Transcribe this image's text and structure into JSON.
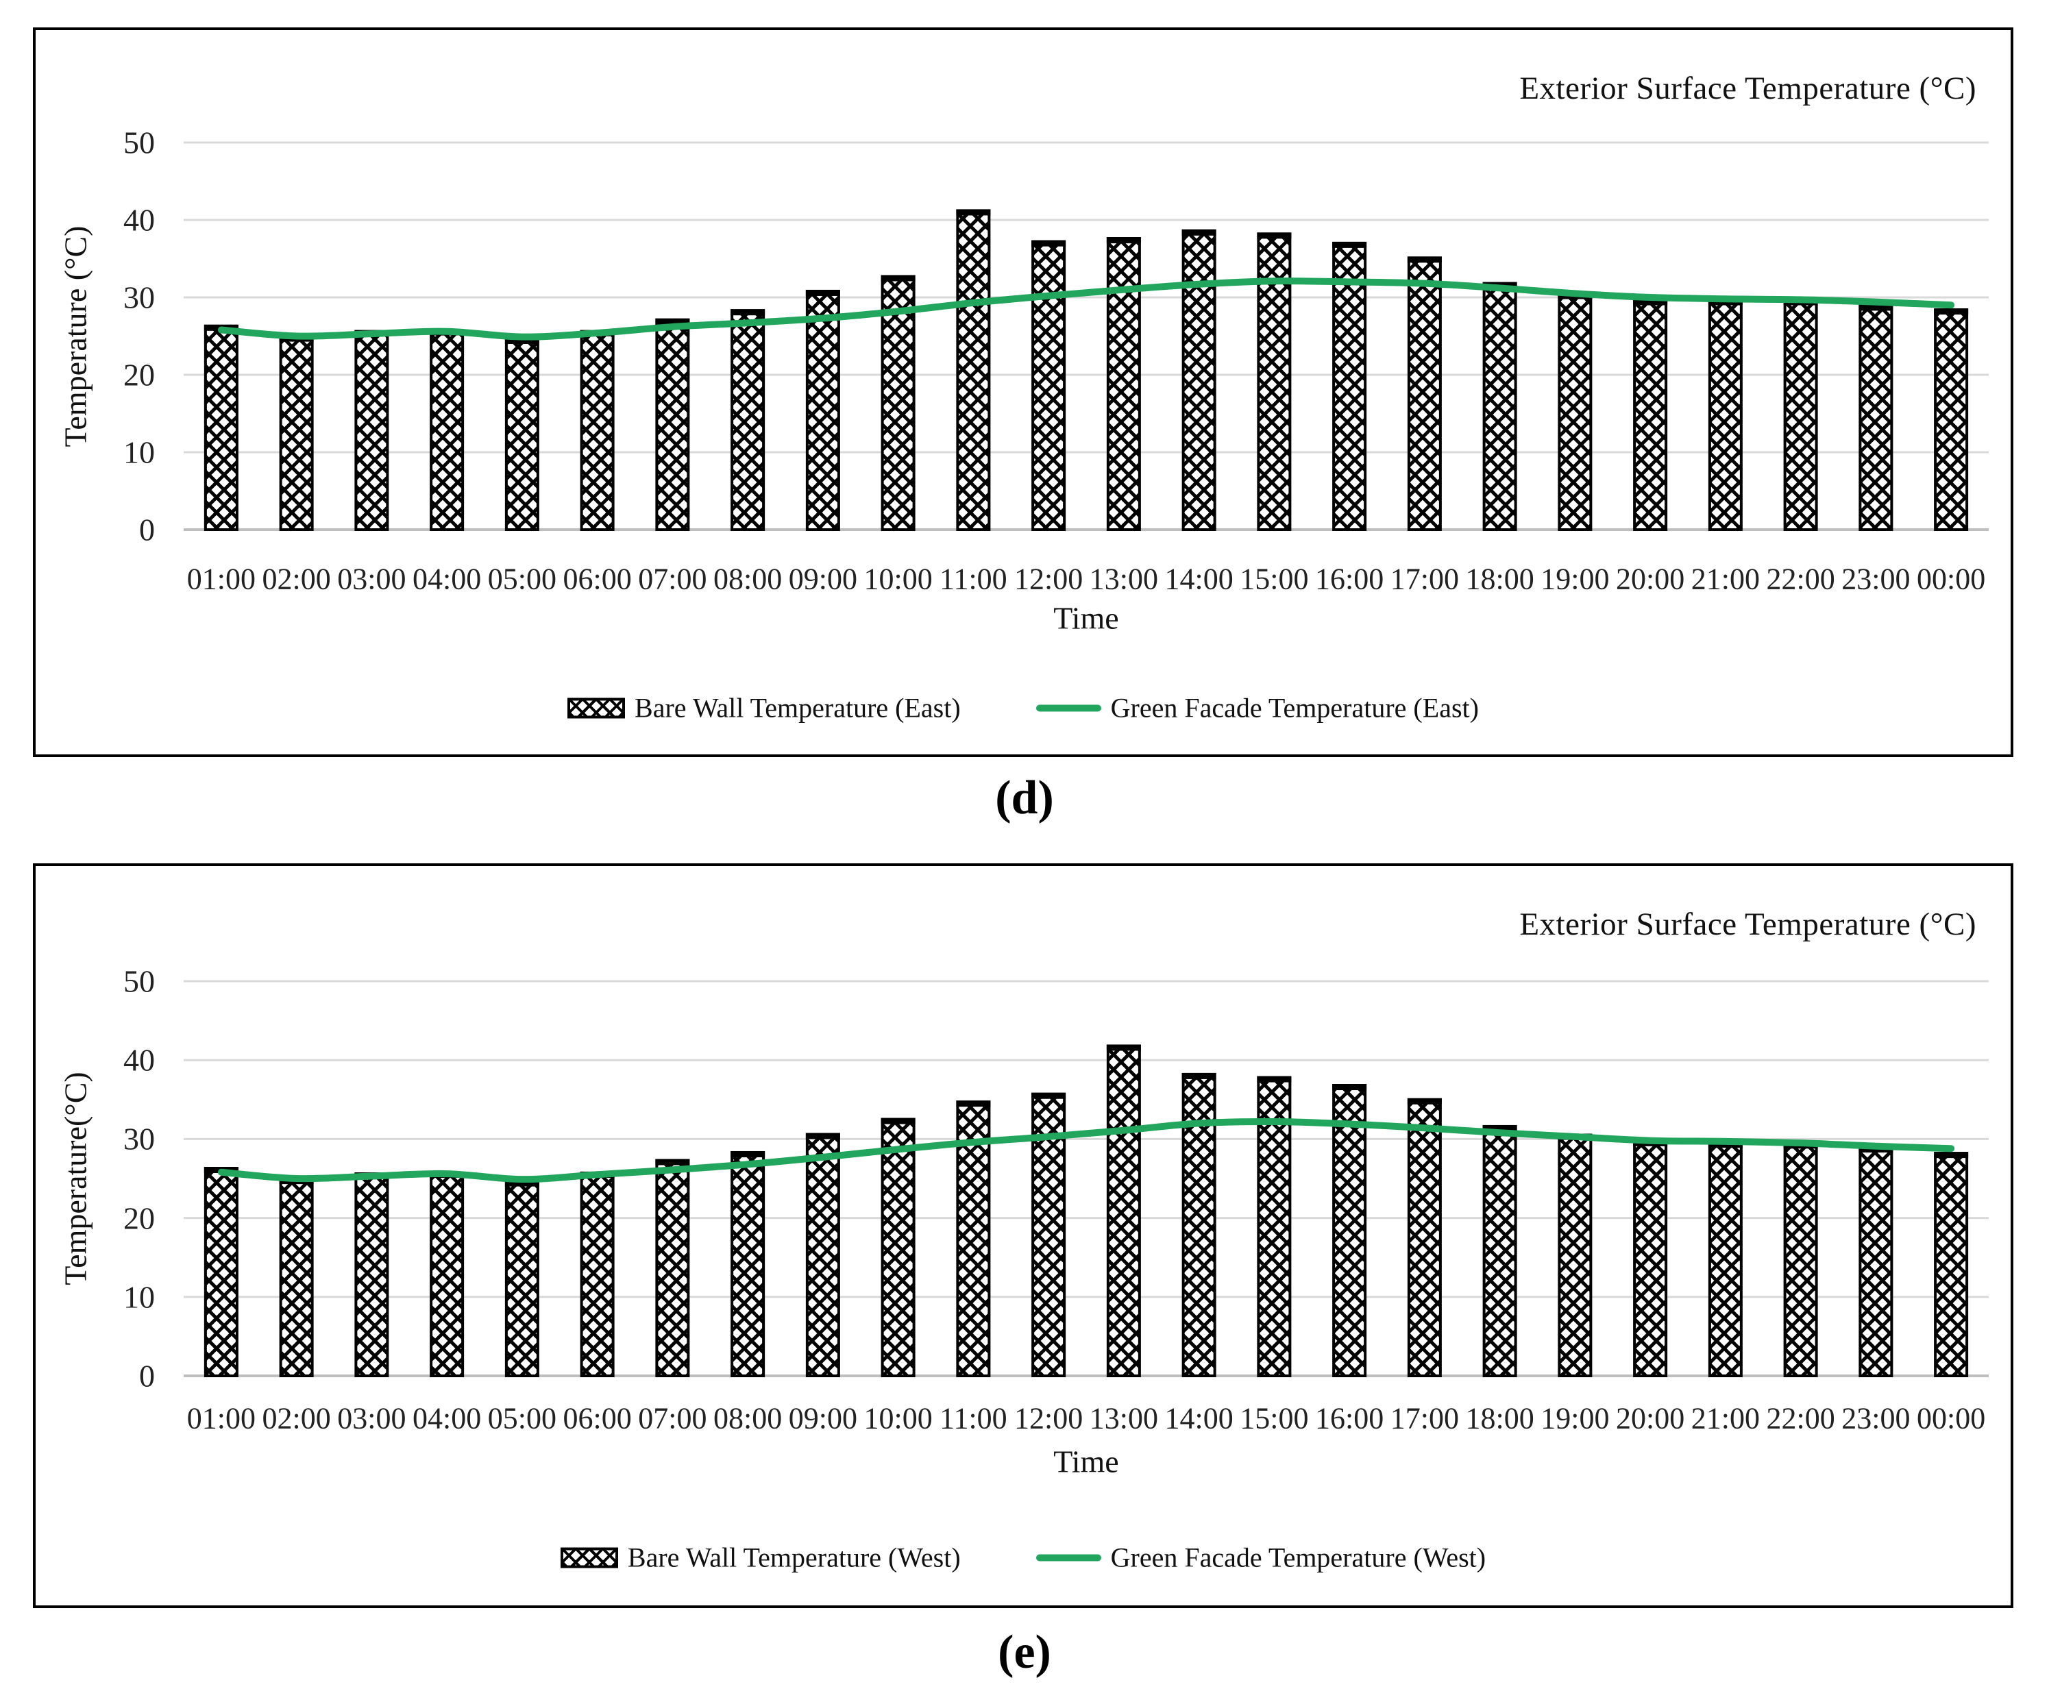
{
  "figure": {
    "caption_d": "(d)",
    "caption_e": "(e)"
  },
  "colors": {
    "line_green": "#22A55C",
    "gridline": "#D9D9D9",
    "axis_line": "#BFBFBF",
    "bar_outline": "#000000",
    "bar_fill": "#FFFFFF",
    "background": "#FFFFFF"
  },
  "chart_data": [
    {
      "id": "east",
      "type": "bar",
      "title": "Exterior Surface Temperature (°C)",
      "xlabel": "Time",
      "ylabel": "Temperature (°C)",
      "ylim": [
        0,
        50
      ],
      "y_ticks": [
        0,
        10,
        20,
        30,
        40,
        50
      ],
      "grid": true,
      "legend_position": "bottom",
      "caption": "(d)",
      "categories": [
        "01:00",
        "02:00",
        "03:00",
        "04:00",
        "05:00",
        "06:00",
        "07:00",
        "08:00",
        "09:00",
        "10:00",
        "11:00",
        "12:00",
        "13:00",
        "14:00",
        "15:00",
        "16:00",
        "17:00",
        "18:00",
        "19:00",
        "20:00",
        "21:00",
        "22:00",
        "23:00",
        "00:00"
      ],
      "series": [
        {
          "name": "Bare Wall Temperature (East)",
          "type": "bar",
          "style": "black-crosshatch",
          "values": [
            26.3,
            24.9,
            25.6,
            25.7,
            24.6,
            25.6,
            27.1,
            28.3,
            30.8,
            32.7,
            41.2,
            37.2,
            37.6,
            38.6,
            38.2,
            37.0,
            35.1,
            31.8,
            30.4,
            29.6,
            29.6,
            29.6,
            28.9,
            28.4
          ]
        },
        {
          "name": "Green Facade Temperature (East)",
          "type": "line",
          "color": "#22A55C",
          "values": [
            25.8,
            25.0,
            25.3,
            25.6,
            24.9,
            25.4,
            26.2,
            26.7,
            27.3,
            28.2,
            29.3,
            30.2,
            31.0,
            31.7,
            32.1,
            32.0,
            31.8,
            31.2,
            30.5,
            30.0,
            29.8,
            29.7,
            29.4,
            29.0
          ]
        }
      ]
    },
    {
      "id": "west",
      "type": "bar",
      "title": "Exterior Surface Temperature (°C)",
      "xlabel": "Time",
      "ylabel": "Temperature(°C)",
      "ylim": [
        0,
        50
      ],
      "y_ticks": [
        0,
        10,
        20,
        30,
        40,
        50
      ],
      "grid": true,
      "legend_position": "bottom",
      "caption": "(e)",
      "categories": [
        "01:00",
        "02:00",
        "03:00",
        "04:00",
        "05:00",
        "06:00",
        "07:00",
        "08:00",
        "09:00",
        "10:00",
        "11:00",
        "12:00",
        "13:00",
        "14:00",
        "15:00",
        "16:00",
        "17:00",
        "18:00",
        "19:00",
        "20:00",
        "21:00",
        "22:00",
        "23:00",
        "00:00"
      ],
      "series": [
        {
          "name": "Bare Wall Temperature (West)",
          "type": "bar",
          "style": "black-crosshatch",
          "values": [
            26.3,
            24.9,
            25.6,
            25.7,
            24.6,
            25.7,
            27.3,
            28.3,
            30.6,
            32.5,
            34.7,
            35.7,
            41.8,
            38.2,
            37.8,
            36.8,
            35.0,
            31.6,
            30.5,
            29.7,
            29.5,
            29.4,
            28.9,
            28.2
          ]
        },
        {
          "name": "Green Facade Temperature (West)",
          "type": "line",
          "color": "#22A55C",
          "values": [
            25.8,
            25.0,
            25.3,
            25.6,
            24.9,
            25.5,
            26.1,
            26.8,
            27.7,
            28.7,
            29.6,
            30.3,
            31.1,
            32.0,
            32.2,
            31.9,
            31.4,
            30.8,
            30.3,
            29.8,
            29.7,
            29.5,
            29.1,
            28.8
          ]
        }
      ]
    }
  ]
}
